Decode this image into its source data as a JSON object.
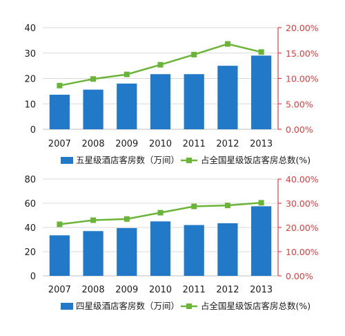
{
  "chart_data": [
    {
      "type": "bar",
      "categories": [
        "2007",
        "2008",
        "2009",
        "2010",
        "2011",
        "2012",
        "2013"
      ],
      "series": [
        {
          "name": "五星级酒店客房数（万间）",
          "type": "bar",
          "axis": "left",
          "values": [
            13.6,
            15.6,
            18.0,
            21.7,
            21.7,
            25.0,
            29.0
          ]
        },
        {
          "name": "占全国星级饭店客房总数(%)",
          "type": "line",
          "axis": "right",
          "values": [
            8.6,
            9.9,
            10.8,
            12.7,
            14.7,
            16.8,
            15.2
          ]
        }
      ],
      "left_axis": {
        "ylim": [
          0,
          40
        ],
        "ticks": [
          "0",
          "10",
          "20",
          "30",
          "40"
        ]
      },
      "right_axis": {
        "ylim": [
          0,
          20
        ],
        "ticks": [
          "0.00%",
          "5.00%",
          "10.00%",
          "15.00%",
          "20.00%"
        ]
      },
      "legend_position": "bottom",
      "grid": true
    },
    {
      "type": "bar",
      "categories": [
        "2007",
        "2008",
        "2009",
        "2010",
        "2011",
        "2012",
        "2013"
      ],
      "series": [
        {
          "name": "四星级酒店客房数（万间）",
          "type": "bar",
          "axis": "left",
          "values": [
            33.5,
            37.0,
            39.5,
            45.0,
            42.0,
            43.5,
            57.5
          ]
        },
        {
          "name": "占全国星级饭店客房总数(%)",
          "type": "line",
          "axis": "right",
          "values": [
            21.3,
            23.0,
            23.5,
            26.1,
            28.7,
            29.1,
            30.2
          ]
        }
      ],
      "left_axis": {
        "ylim": [
          0,
          80
        ],
        "ticks": [
          "0",
          "20",
          "40",
          "60",
          "80"
        ]
      },
      "right_axis": {
        "ylim": [
          0,
          40
        ],
        "ticks": [
          "0.00%",
          "10.00%",
          "20.00%",
          "30.00%",
          "40.00%"
        ]
      },
      "legend_position": "bottom",
      "grid": true
    }
  ],
  "colors": {
    "bar": "#2279C7",
    "line": "#6AB537",
    "right_axis": "#E8393A",
    "grid": "#D9D9D9",
    "text": "#1A1A1A"
  }
}
